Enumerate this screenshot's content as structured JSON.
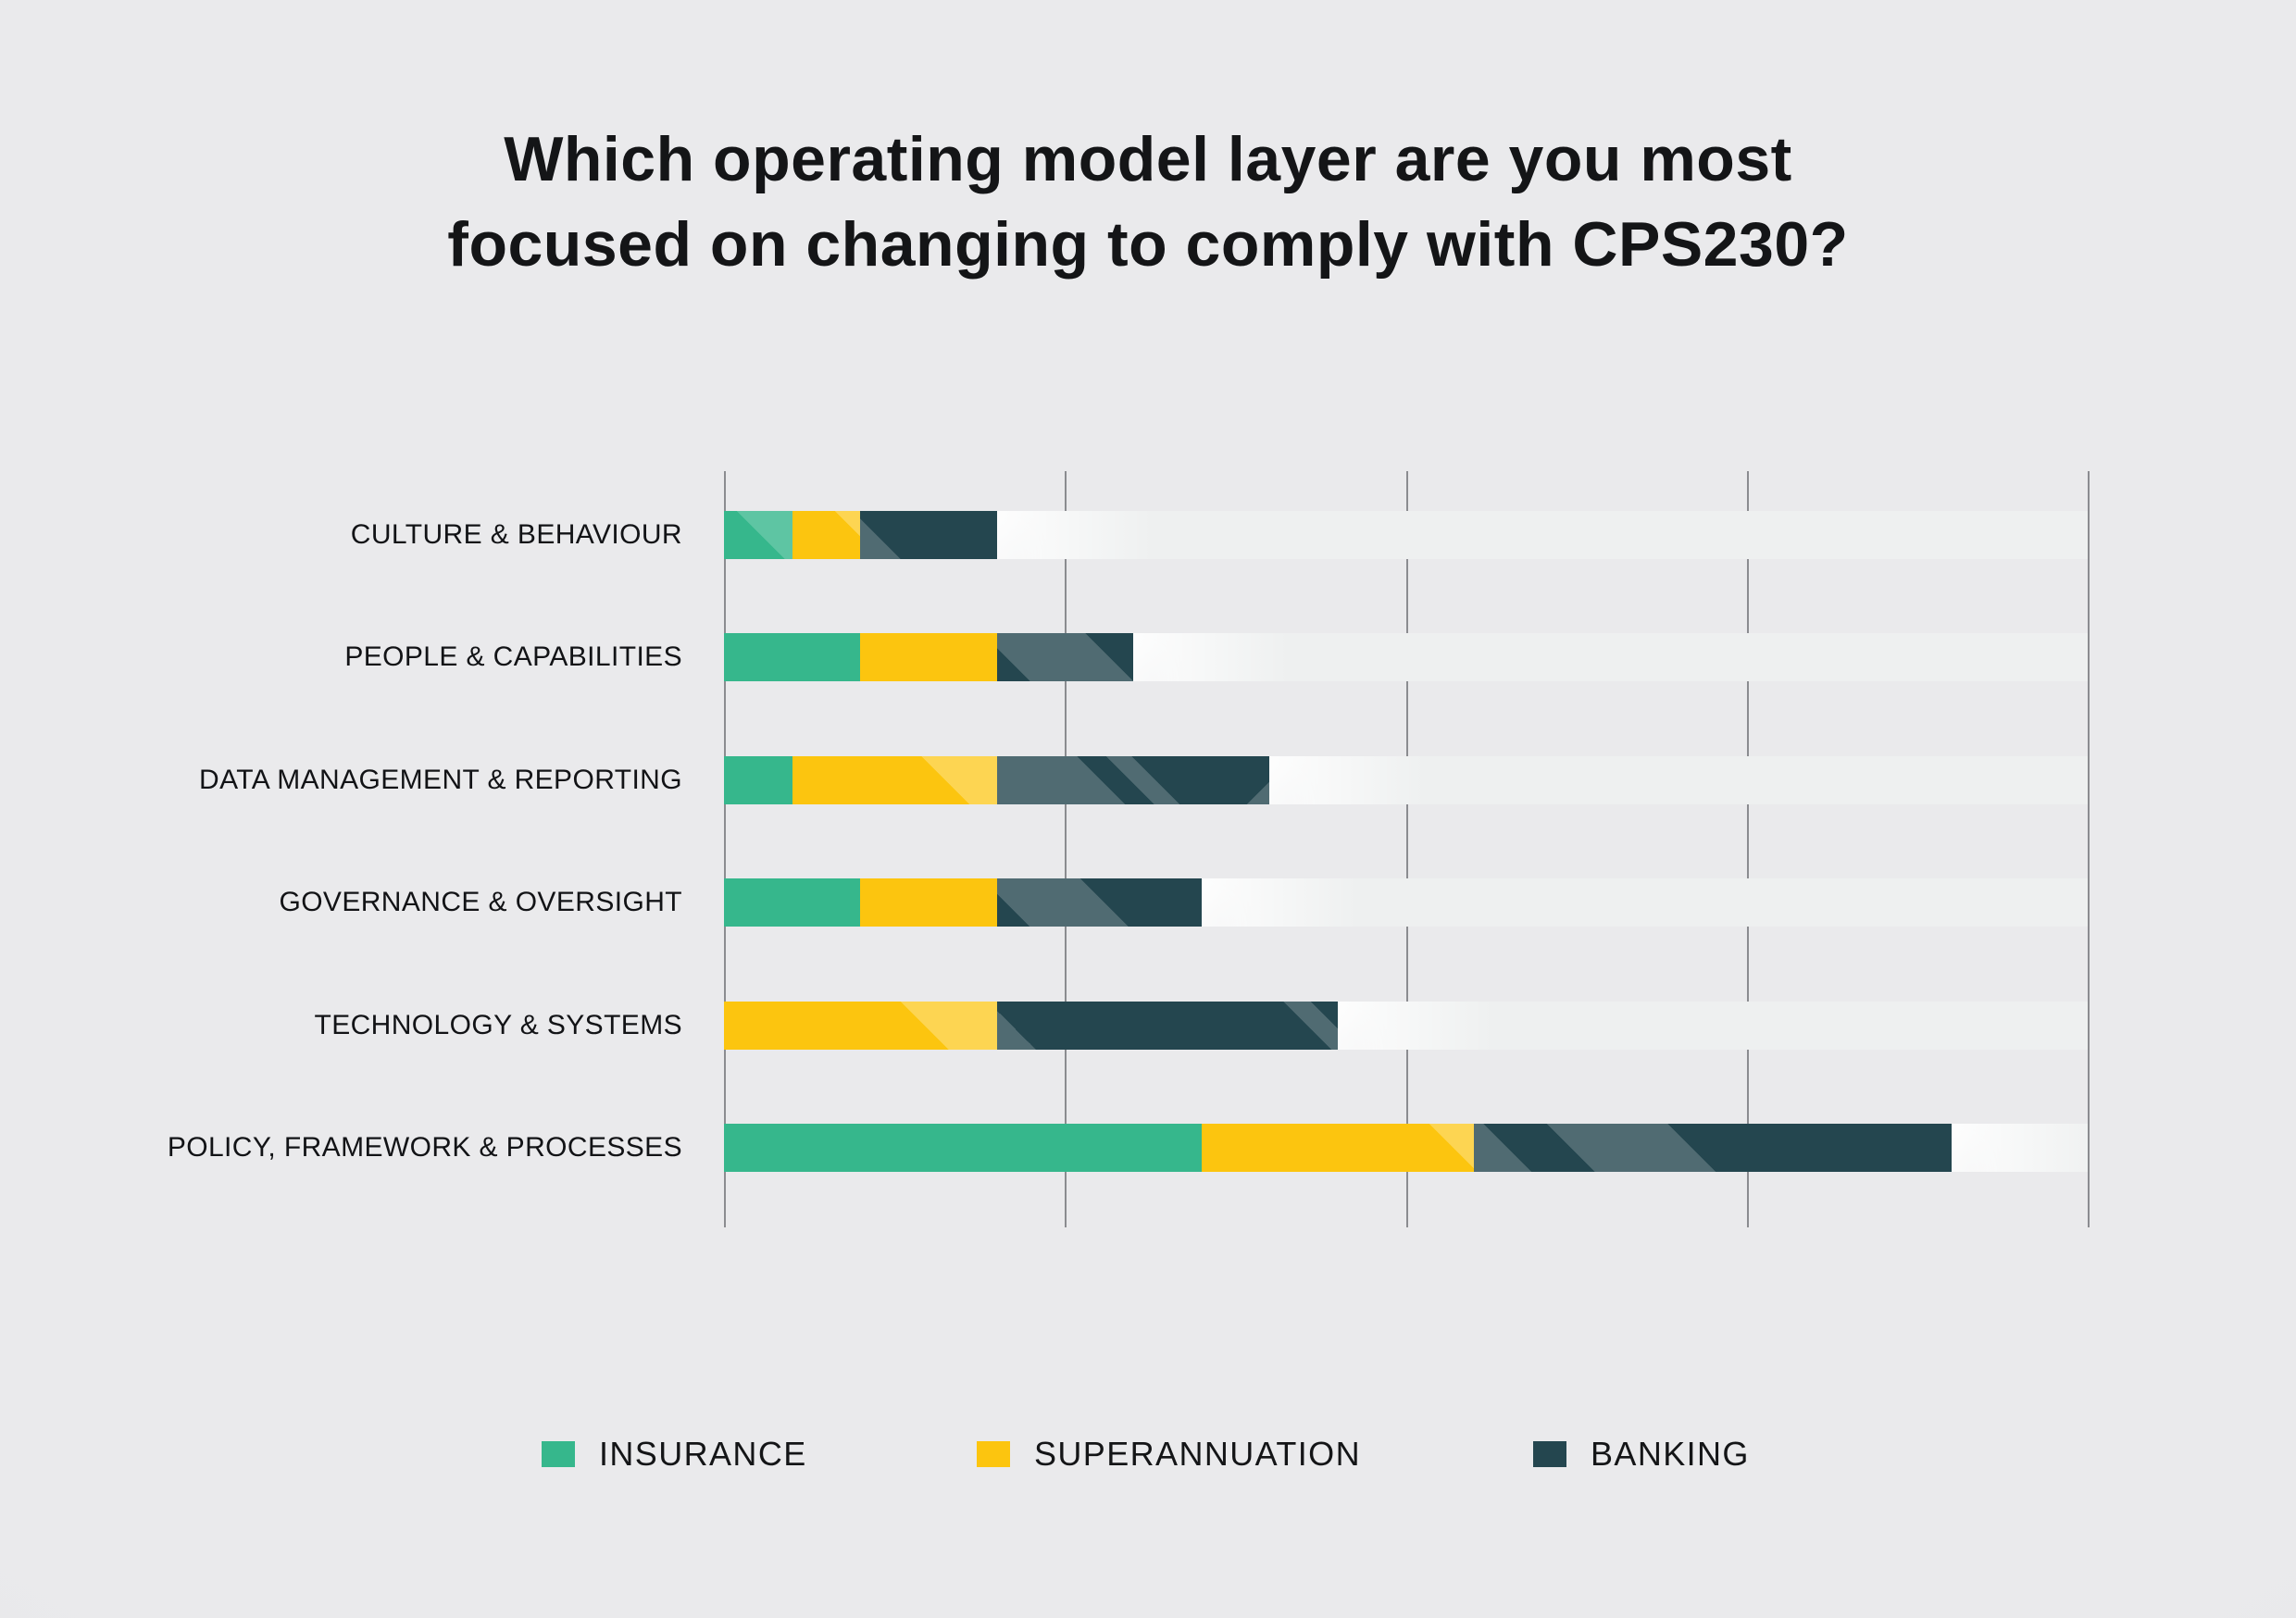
{
  "header": {
    "title_line1": "Which operating model layer are you most",
    "title_line2": "focused on changing to comply with CPS230?"
  },
  "chart_data": {
    "type": "bar",
    "orientation": "horizontal",
    "stacked": true,
    "title": "Which operating model layer are you most focused on changing to comply with CPS230?",
    "categories": [
      "CULTURE & BEHAVIOUR",
      "PEOPLE & CAPABILITIES",
      "DATA MANAGEMENT & REPORTING",
      "GOVERNANCE & OVERSIGHT",
      "TECHNOLOGY & SYSTEMS",
      "POLICY, FRAMEWORK & PROCESSES"
    ],
    "series": [
      {
        "name": "INSURANCE",
        "color": "#36b78c",
        "values": [
          1,
          2,
          1,
          2,
          0,
          7
        ]
      },
      {
        "name": "SUPERANNUATION",
        "color": "#fcc50f",
        "values": [
          1,
          2,
          3,
          2,
          4,
          4
        ]
      },
      {
        "name": "BANKING",
        "color": "#24464f",
        "values": [
          2,
          2,
          4,
          3,
          5,
          7
        ]
      }
    ],
    "xlabel": "",
    "ylabel": "",
    "xlim": [
      0,
      20
    ],
    "gridline_step": 5,
    "grid": true,
    "tick_labels_visible": false,
    "legend_position": "bottom"
  },
  "legend": {
    "items": [
      {
        "label": "INSURANCE",
        "color": "#36b78c"
      },
      {
        "label": "SUPERANNUATION",
        "color": "#fcc50f"
      },
      {
        "label": "BANKING",
        "color": "#24464f"
      }
    ]
  },
  "colors": {
    "background": "#e8e8ea",
    "track": "#eef0f0",
    "gridline": "#8b8c90",
    "text": "#141517"
  }
}
